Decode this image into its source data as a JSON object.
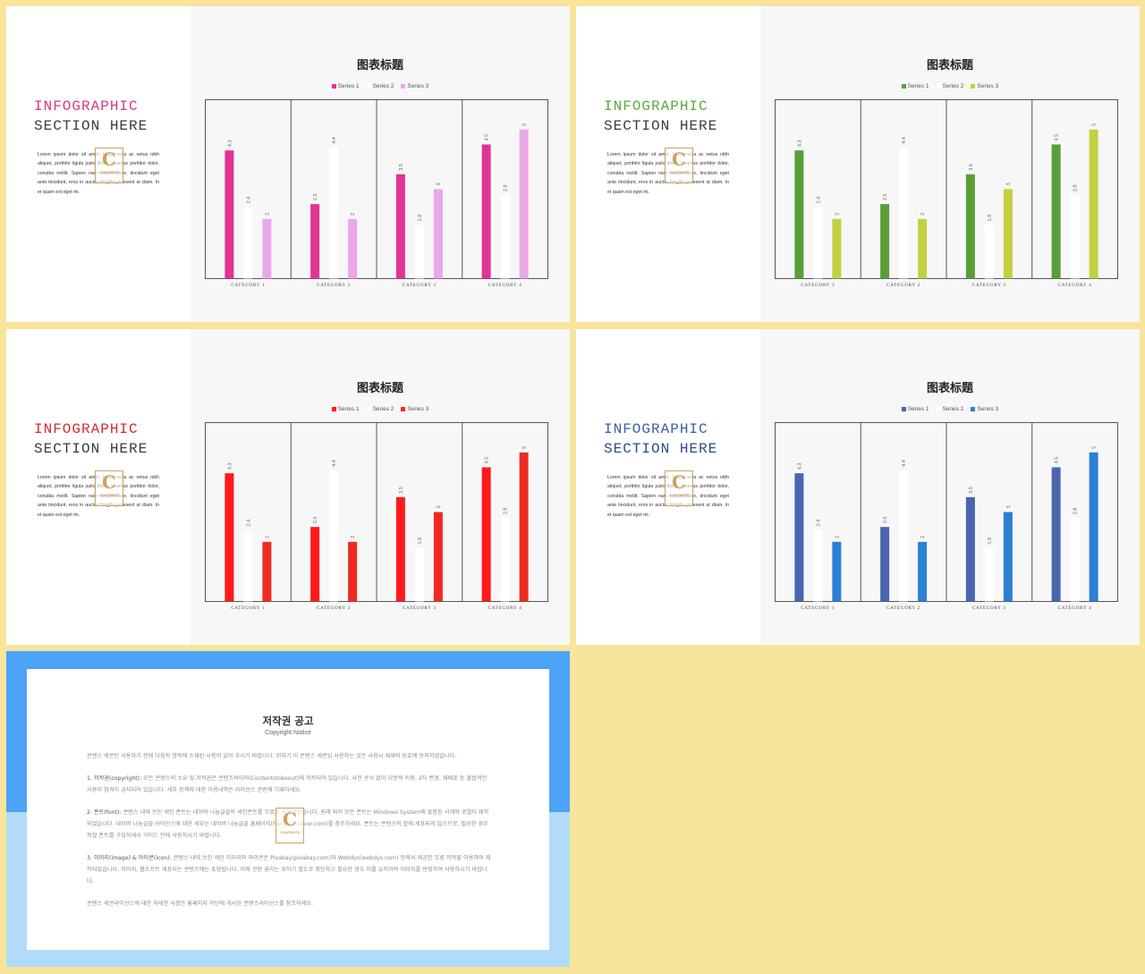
{
  "slides": [
    {
      "heading1": "INFOGRAPHIC",
      "heading2": "SECTION HERE",
      "heading_color": "#d9358c",
      "body": "Lorem ipsum dolor sit amet, lacus nulla ac netus nibh aliquet, porttitor ligula justo libero vivamus porttitor dolor, conubia mollit. Sapien nam suspendisse, tincidunt eget ante tincidunt, eros in auctor fringilla praesent at diam. In et quam est eget mi.",
      "logo": {
        "letter": "C",
        "text": "CONTENTS"
      },
      "chart_data": {
        "type": "bar",
        "title": "图表标题",
        "categories": [
          "CATEGORY 1",
          "CATEGORY 2",
          "CATEGORY 3",
          "CATEGORY 4"
        ],
        "series": [
          {
            "name": "Series 1",
            "values": [
              4.3,
              2.5,
              3.5,
              4.5
            ],
            "color": "#e03593"
          },
          {
            "name": "Series 2",
            "values": [
              2.4,
              4.4,
              1.8,
              2.8
            ],
            "color": "#ffffff"
          },
          {
            "name": "Series 3",
            "values": [
              2,
              2,
              3,
              5
            ],
            "color": "#eaa7e8"
          }
        ],
        "ylim": [
          0,
          6
        ],
        "grid": "vertical category dividers",
        "legend": "top"
      }
    },
    {
      "heading1": "INFOGRAPHIC",
      "heading2": "SECTION HERE",
      "heading_color": "#5ca83a",
      "body": "Lorem ipsum dolor sit amet, lacus nulla ac netus nibh aliquet, porttitor ligula justo libero vivamus porttitor dolor, conubia mollit. Sapien nam suspendisse, tincidunt eget ante tincidunt, eros in auctor fringilla praesent at diam. In et quam est eget mi.",
      "logo": {
        "letter": "C",
        "text": "CONTENTS"
      },
      "chart_data": {
        "type": "bar",
        "title": "图表标题",
        "categories": [
          "CATEGORY 1",
          "CATEGORY 2",
          "CATEGORY 3",
          "CATEGORY 4"
        ],
        "series": [
          {
            "name": "Series 1",
            "values": [
              4.3,
              2.5,
              3.5,
              4.5
            ],
            "color": "#5a9e38"
          },
          {
            "name": "Series 2",
            "values": [
              2.4,
              4.4,
              1.8,
              2.8
            ],
            "color": "#ffffff"
          },
          {
            "name": "Series 3",
            "values": [
              2,
              2,
              3,
              5
            ],
            "color": "#c4d03f"
          }
        ],
        "ylim": [
          0,
          6
        ],
        "grid": "vertical category dividers",
        "legend": "top"
      }
    },
    {
      "heading1": "INFOGRAPHIC",
      "heading2": "SECTION HERE",
      "heading_color": "#d42a2a",
      "body": "Lorem ipsum dolor sit amet, lacus nulla ac netus nibh aliquet, porttitor ligula justo libero vivamus porttitor dolor, conubia mollit. Sapien nam suspendisse, tincidunt eget ante tincidunt, eros in auctor fringilla praesent at diam. In et quam est eget mi.",
      "logo": {
        "letter": "C",
        "text": "CONTENTS"
      },
      "chart_data": {
        "type": "bar",
        "title": "图表标题",
        "categories": [
          "CATEGORY 1",
          "CATEGORY 2",
          "CATEGORY 3",
          "CATEGORY 4"
        ],
        "series": [
          {
            "name": "Series 1",
            "values": [
              4.3,
              2.5,
              3.5,
              4.5
            ],
            "color": "#ff1a1a"
          },
          {
            "name": "Series 2",
            "values": [
              2.4,
              4.4,
              1.8,
              2.8
            ],
            "color": "#ffffff"
          },
          {
            "name": "Series 3",
            "values": [
              2,
              2,
              3,
              5
            ],
            "color": "#ee2a22"
          }
        ],
        "ylim": [
          0,
          6
        ],
        "grid": "vertical category dividers",
        "legend": "top"
      }
    },
    {
      "heading1": "INFOGRAPHIC",
      "heading2": "SECTION HERE",
      "heading_color": "#3a5fa8",
      "heading2_color": "#2b4a8a",
      "body": "Lorem ipsum dolor sit amet, lacus nulla ac netus nibh aliquet, porttitor ligula justo libero vivamus porttitor dolor, conubia mollit. Sapien nam suspendisse, tincidunt eget ante tincidunt, eros in auctor fringilla praesent at diam. In et quam est eget mi.",
      "logo": {
        "letter": "C",
        "text": "CONTENTS"
      },
      "chart_data": {
        "type": "bar",
        "title": "图表标题",
        "categories": [
          "CATEGORY 1",
          "CATEGORY 2",
          "CATEGORY 3",
          "CATEGORY 4"
        ],
        "series": [
          {
            "name": "Series 1",
            "values": [
              4.3,
              2.5,
              3.5,
              4.5
            ],
            "color": "#4a66b0"
          },
          {
            "name": "Series 2",
            "values": [
              2.4,
              4.4,
              1.8,
              2.8
            ],
            "color": "#ffffff"
          },
          {
            "name": "Series 3",
            "values": [
              2,
              2,
              3,
              5
            ],
            "color": "#2b7fd4"
          }
        ],
        "ylim": [
          0,
          6
        ],
        "grid": "vertical category dividers",
        "legend": "top"
      }
    }
  ],
  "copyright": {
    "title": "저작권 공고",
    "subtitle": "Copyright Notice",
    "intro": "콘텐스 세콘인 사용하기 전에 다음의 항목에 소재된 사용이 읽어 주시기 바랍니다. 위하기 이 콘텐스 세콘입 사용하는 것은 사용시 재재의 보호에 동의하셨습니다.",
    "item1_label": "1. 저작권(copyright):",
    "item1": " 모든 콘텐스의 소유 및 저작권은 콘텐츠바이어(Contentstokeout)에 저작되어 있습니다. 사전 승낙 없이 모방적 이용, 2차 변경, 재배포 등 불법적인 사용이 엄격히 금지되어 있습니다. 세부 정책에 대한 이용내역은 라이선스 관련에 기재하세요.",
    "item2_label": "2. 폰트(font):",
    "item2": " 콘텐스 내에 쓰인 세인 폰트는 네이버 나눔글꼴의 세인폰트를 무료로 사용하였습니다. 원래 외의 모든 폰트는 Windows System에 포함된 서체와 로열티 제약되었습니다. 네이버 나눔글꼴 라이선스에 대한 세부는 네이버 나눔글꼴 홈페이지(hangeul.naver.com)를 참조하세요. 폰트는 콘텐스의 합에 세포되지 않으므로, 필요한 경우 적절 폰트를 구입하세서 가이드 안에 사용하시기 바랍니다.",
    "item3_label": "3. 이미지(image) & 아이콘(icon):",
    "item3": " 콘텐스 내에 쓰인 세인 이미지와 아이콘은 Pixabay(pixabay.com)와 Webdys(webdys.com) 등에서 제공한 무료 저작물 이용하여 제작되었습니다. 이미지, 웹소프트 세포되는 콘텐츠에는 포함됩니다. 이에 관한 권리는 위하기 별도로 확인하고 필요한 경우 이를 유의하여 이미지를 반영하여 사용하시기 바랍니다.",
    "outro": "콘텐스 세콘라이선스에 대한 자세한 사항은 홈페이지 하단에 게시된 콘텐츠라이선스를 참조하세요.",
    "logo": {
      "letter": "C",
      "text": "CONTENTS"
    }
  }
}
